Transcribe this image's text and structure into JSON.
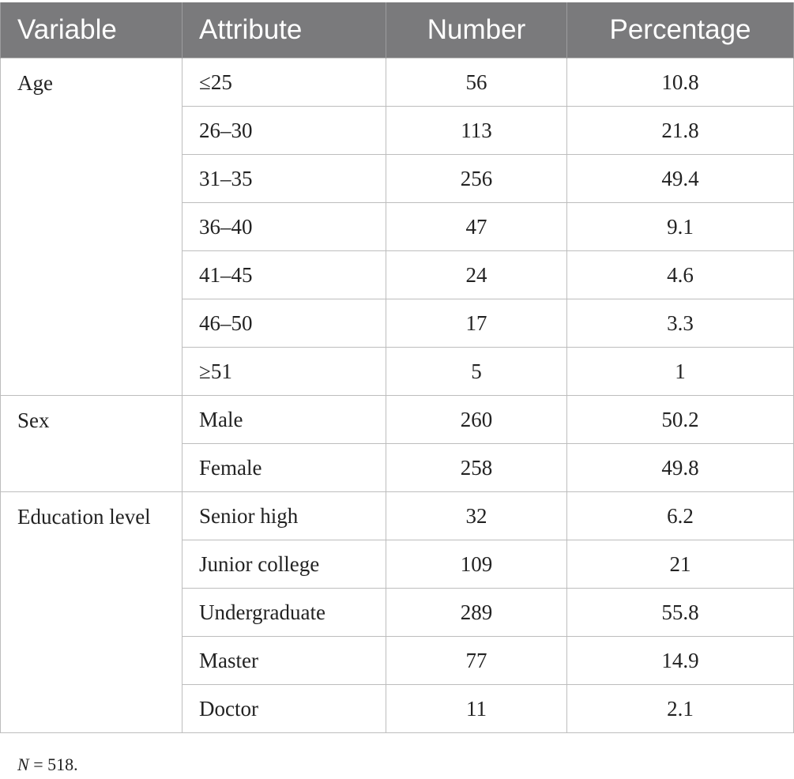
{
  "table": {
    "headers": [
      "Variable",
      "Attribute",
      "Number",
      "Percentage"
    ],
    "groups": [
      {
        "variable": "Age",
        "rows": [
          {
            "attribute": "≤25",
            "number": "56",
            "percentage": "10.8"
          },
          {
            "attribute": "26–30",
            "number": "113",
            "percentage": "21.8"
          },
          {
            "attribute": "31–35",
            "number": "256",
            "percentage": "49.4"
          },
          {
            "attribute": "36–40",
            "number": "47",
            "percentage": "9.1"
          },
          {
            "attribute": "41–45",
            "number": "24",
            "percentage": "4.6"
          },
          {
            "attribute": "46–50",
            "number": "17",
            "percentage": "3.3"
          },
          {
            "attribute": "≥51",
            "number": "5",
            "percentage": "1"
          }
        ]
      },
      {
        "variable": "Sex",
        "rows": [
          {
            "attribute": "Male",
            "number": "260",
            "percentage": "50.2"
          },
          {
            "attribute": "Female",
            "number": "258",
            "percentage": "49.8"
          }
        ]
      },
      {
        "variable": "Education level",
        "rows": [
          {
            "attribute": "Senior high",
            "number": "32",
            "percentage": "6.2"
          },
          {
            "attribute": "Junior college",
            "number": "109",
            "percentage": "21"
          },
          {
            "attribute": "Undergraduate",
            "number": "289",
            "percentage": "55.8"
          },
          {
            "attribute": "Master",
            "number": "77",
            "percentage": "14.9"
          },
          {
            "attribute": "Doctor",
            "number": "11",
            "percentage": "2.1"
          }
        ]
      }
    ]
  },
  "footnote": {
    "symbol": "N",
    "text": " = 518."
  },
  "colors": {
    "header_bg": "#7a7a7c",
    "header_text": "#ffffff",
    "grid": "#bdbdbd"
  }
}
